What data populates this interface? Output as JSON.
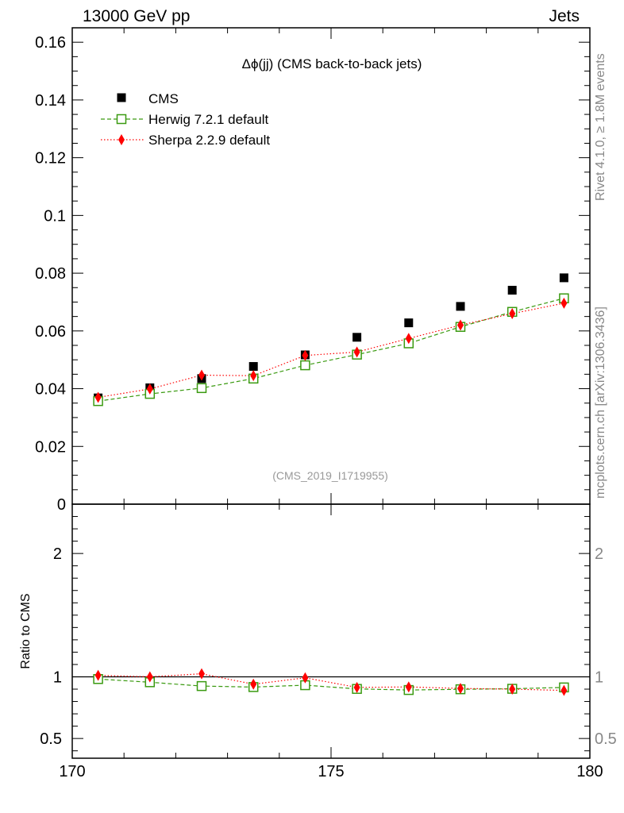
{
  "header": {
    "left_label": "13000 GeV pp",
    "right_label": "Jets"
  },
  "side_labels": {
    "rivet": "Rivet 4.1.0, ≥ 1.8M events",
    "mcplots": "mcplots.cern.ch [arXiv:1306.3436]"
  },
  "chart_data": {
    "type": "scatter",
    "title": "Δϕ(jj) (CMS back-to-back jets)",
    "analysis_tag": "(CMS_2019_I1719955)",
    "xlabel": "",
    "ylabel": "",
    "xlim": [
      170,
      180
    ],
    "ylim": [
      0,
      0.165
    ],
    "x_ticks": [
      "170",
      "175",
      "180"
    ],
    "x_tick_values": [
      170,
      175,
      180
    ],
    "y_ticks": [
      "0",
      "0.02",
      "0.04",
      "0.06",
      "0.08",
      "0.1",
      "0.12",
      "0.14",
      "0.16"
    ],
    "y_tick_values": [
      0,
      0.02,
      0.04,
      0.06,
      0.08,
      0.1,
      0.12,
      0.14,
      0.16
    ],
    "x": [
      170.5,
      171.5,
      172.5,
      173.5,
      174.5,
      175.5,
      176.5,
      177.5,
      178.5,
      179.5
    ],
    "series": [
      {
        "name": "CMS",
        "color": "#000000",
        "marker": "square",
        "line": "none",
        "values": [
          0.0368,
          0.0403,
          0.0435,
          0.0477,
          0.0517,
          0.0578,
          0.0628,
          0.0685,
          0.0741,
          0.0784
        ]
      },
      {
        "name": "Herwig 7.2.1 default",
        "color": "#3a9a10",
        "marker": "open-square",
        "line": "dashed",
        "values": [
          0.0357,
          0.0382,
          0.0402,
          0.0435,
          0.0481,
          0.0518,
          0.0557,
          0.0614,
          0.0666,
          0.0713
        ]
      },
      {
        "name": "Sherpa 2.2.9 default",
        "color": "#ff0000",
        "marker": "diamond",
        "line": "dotted",
        "values": [
          0.037,
          0.0399,
          0.0447,
          0.0445,
          0.0515,
          0.0527,
          0.0574,
          0.062,
          0.066,
          0.0696
        ]
      }
    ],
    "ratio_panel": {
      "ylabel": "Ratio to CMS",
      "ylim": [
        0.34,
        2.4
      ],
      "y_ticks": [
        "0.5",
        "1",
        "2"
      ],
      "y_tick_values": [
        0.5,
        1,
        2
      ],
      "reference": 1,
      "series": [
        {
          "name": "Herwig 7.2.1 default",
          "color": "#3a9a10",
          "marker": "open-square",
          "line": "dashed",
          "values": [
            0.982,
            0.956,
            0.925,
            0.917,
            0.932,
            0.902,
            0.893,
            0.899,
            0.903,
            0.914
          ]
        },
        {
          "name": "Sherpa 2.2.9 default",
          "color": "#ff0000",
          "marker": "diamond",
          "line": "dotted",
          "values": [
            1.012,
            1.0,
            1.025,
            0.94,
            0.992,
            0.914,
            0.918,
            0.906,
            0.9,
            0.89
          ]
        }
      ]
    }
  }
}
